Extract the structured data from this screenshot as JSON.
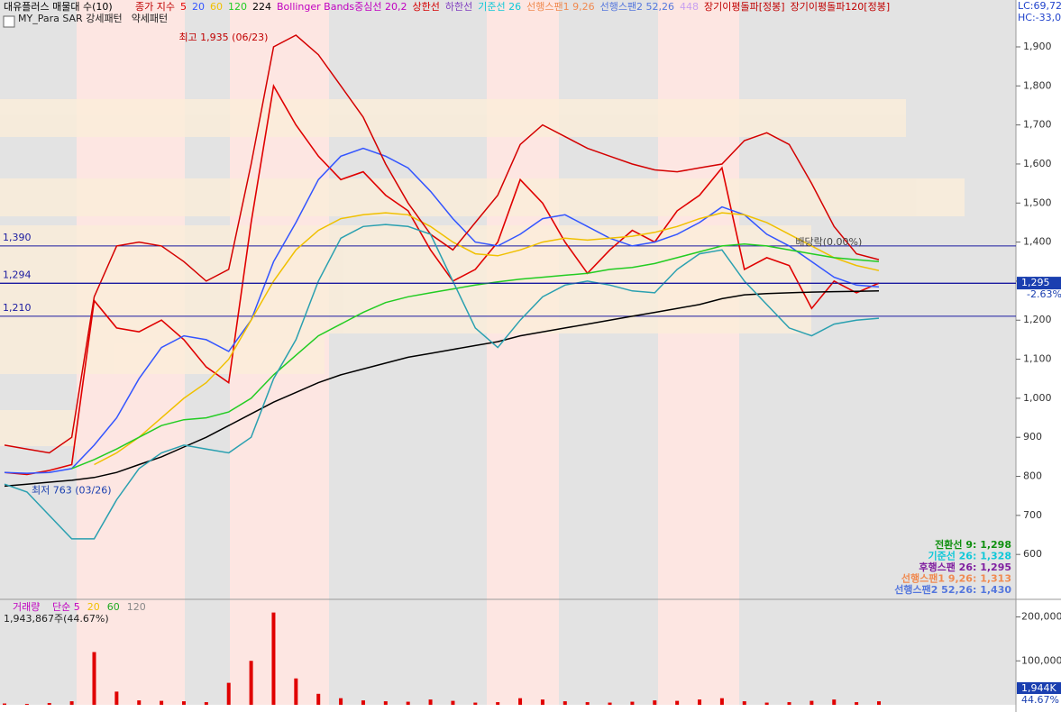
{
  "chart_data": [
    {
      "type": "line",
      "title": "대유플러스 매물대 수(10)",
      "subtitle_items": [
        "MY_Para SAR 강세패턴",
        "약세패턴"
      ],
      "header_items": [
        {
          "text": "종가 지수",
          "color": "#c00000"
        },
        {
          "text": "Bollinger Bands중심선 20,2",
          "color": "#c000c0"
        },
        {
          "text": "상한선",
          "color": "#d40000"
        },
        {
          "text": "하한선",
          "color": "#8040c0"
        },
        {
          "text": "기준선 26",
          "color": "#10c8d8"
        },
        {
          "text": "선행스팬1 9,26",
          "color": "#f08a50"
        },
        {
          "text": "선행스팬2 52,26",
          "color": "#5577dd"
        },
        {
          "text": "448",
          "color": "#c8a0f0"
        },
        {
          "text": "장기이평돌파[정봉]",
          "color": "#c00000"
        },
        {
          "text": "장기이평돌파120[정봉]",
          "color": "#c00000"
        }
      ],
      "corner_labels": [
        "LC:69,72",
        "HC:-33,0"
      ],
      "series": [
        {
          "name": "5",
          "color": "#e00000",
          "values": [
            810,
            805,
            815,
            830,
            1250,
            1180,
            1170,
            1200,
            1150,
            1080,
            1040,
            1450,
            1800,
            1700,
            1620,
            1560,
            1580,
            1520,
            1480,
            1380,
            1300,
            1330,
            1400,
            1560,
            1500,
            1400,
            1320,
            1380,
            1430,
            1400,
            1480,
            1520,
            1590,
            1330,
            1360,
            1340,
            1230,
            1300,
            1270,
            1295
          ]
        },
        {
          "name": "20",
          "color": "#3355ff",
          "values": [
            810,
            808,
            810,
            820,
            880,
            950,
            1050,
            1130,
            1160,
            1150,
            1120,
            1200,
            1350,
            1450,
            1560,
            1620,
            1640,
            1620,
            1590,
            1530,
            1460,
            1400,
            1390,
            1420,
            1460,
            1470,
            1440,
            1410,
            1390,
            1400,
            1420,
            1450,
            1490,
            1470,
            1420,
            1390,
            1350,
            1310,
            1290,
            1285
          ]
        },
        {
          "name": "60",
          "color": "#f0c000",
          "values": [
            null,
            null,
            null,
            null,
            830,
            860,
            900,
            950,
            1000,
            1040,
            1100,
            1200,
            1300,
            1380,
            1430,
            1460,
            1470,
            1475,
            1470,
            1440,
            1400,
            1370,
            1365,
            1380,
            1400,
            1410,
            1405,
            1410,
            1415,
            1425,
            1440,
            1460,
            1475,
            1470,
            1450,
            1420,
            1390,
            1360,
            1340,
            1327
          ]
        },
        {
          "name": "120",
          "color": "#22cc22",
          "values": [
            null,
            null,
            null,
            820,
            843,
            870,
            900,
            930,
            945,
            950,
            965,
            1000,
            1060,
            1110,
            1160,
            1190,
            1220,
            1245,
            1260,
            1270,
            1280,
            1290,
            1298,
            1305,
            1310,
            1315,
            1320,
            1330,
            1335,
            1345,
            1360,
            1375,
            1390,
            1395,
            1390,
            1380,
            1370,
            1360,
            1355,
            1350
          ]
        },
        {
          "name": "224",
          "color": "#000000",
          "values": [
            775,
            780,
            785,
            790,
            797,
            810,
            830,
            850,
            875,
            900,
            930,
            960,
            990,
            1015,
            1040,
            1060,
            1075,
            1090,
            1105,
            1115,
            1125,
            1135,
            1145,
            1160,
            1170,
            1180,
            1190,
            1200,
            1210,
            1220,
            1230,
            1240,
            1255,
            1265,
            1268,
            1270,
            1272,
            1273,
            1274,
            1275
          ]
        },
        {
          "name": "상한선",
          "color": "#d40000",
          "values": [
            880,
            870,
            860,
            900,
            1260,
            1390,
            1400,
            1390,
            1350,
            1300,
            1330,
            1600,
            1900,
            1930,
            1880,
            1800,
            1720,
            1600,
            1500,
            1420,
            1380,
            1450,
            1520,
            1650,
            1700,
            1670,
            1640,
            1620,
            1600,
            1585,
            1580,
            1590,
            1600,
            1660,
            1680,
            1650,
            1550,
            1440,
            1370,
            1355
          ]
        },
        {
          "name": "하한선",
          "color": "#2aa0b0",
          "values": [
            780,
            760,
            700,
            640,
            640,
            740,
            820,
            860,
            880,
            870,
            860,
            900,
            1050,
            1150,
            1300,
            1410,
            1440,
            1445,
            1440,
            1420,
            1300,
            1180,
            1130,
            1200,
            1260,
            1290,
            1300,
            1290,
            1275,
            1270,
            1330,
            1370,
            1380,
            1300,
            1240,
            1180,
            1160,
            1190,
            1200,
            1205
          ]
        }
      ],
      "ylim": [
        485,
        2020
      ],
      "yticks": [
        {
          "value": 600,
          "label": "600"
        },
        {
          "value": 700,
          "label": "700"
        },
        {
          "value": 800,
          "label": "800"
        },
        {
          "value": 900,
          "label": "900"
        },
        {
          "value": 1000,
          "label": "1,000"
        },
        {
          "value": 1100,
          "label": "1,100"
        },
        {
          "value": 1200,
          "label": "1,200"
        },
        {
          "value": 1300,
          "label": "1,300"
        },
        {
          "value": 1400,
          "label": "1,400"
        },
        {
          "value": 1500,
          "label": "1,500"
        },
        {
          "value": 1600,
          "label": "1,600"
        },
        {
          "value": 1700,
          "label": "1,700"
        },
        {
          "value": 1800,
          "label": "1,800"
        },
        {
          "value": 1900,
          "label": "1,900"
        }
      ],
      "levels": [
        {
          "value": 1390,
          "label": "1,390"
        },
        {
          "value": 1294,
          "label": "1,294"
        },
        {
          "value": 1210,
          "label": "1,210"
        }
      ],
      "current": {
        "value": 1295,
        "label": "1,295",
        "change": "-2.63%"
      },
      "annotations": [
        {
          "text": "최고 1,935 (06/23)",
          "value": 1935,
          "index": 12
        },
        {
          "text": "최저 763 (03/26)",
          "value": 763,
          "index": 0
        },
        {
          "text": "배당락(0.00%)",
          "value": 1390,
          "index": 36
        }
      ],
      "indicator_legend": [
        {
          "text": "전환선 9: 1,298",
          "color": "#109010"
        },
        {
          "text": "기준선 26: 1,328",
          "color": "#10c8d8"
        },
        {
          "text": "후행스팬 26: 1,295",
          "color": "#8020a0"
        },
        {
          "text": "선행스팬1 9,26: 1,313",
          "color": "#f08a50"
        },
        {
          "text": "선행스팬2 52,26: 1,430",
          "color": "#5577dd"
        }
      ]
    },
    {
      "type": "bar",
      "title": "거래량",
      "legend_items": [
        {
          "text": "단순 5",
          "color": "#c000c0"
        },
        {
          "text": "20",
          "color": "#f0c000"
        },
        {
          "text": "60",
          "color": "#22aa22"
        },
        {
          "text": "120",
          "color": "#888888"
        }
      ],
      "subtitle": "1,943,867주(44.67%)",
      "values": [
        3000,
        2000,
        4000,
        8000,
        120000,
        30000,
        10000,
        9000,
        8000,
        6000,
        50000,
        100000,
        210000,
        60000,
        25000,
        15000,
        10000,
        8000,
        7000,
        12000,
        9000,
        5000,
        6000,
        15000,
        12000,
        8000,
        6000,
        5000,
        7000,
        10000,
        9000,
        12000,
        15000,
        8000,
        5000,
        6000,
        9000,
        12000,
        6000,
        8000
      ],
      "color": "#e00000",
      "ylim": [
        0,
        240000
      ],
      "yticks": [
        {
          "value": 100000,
          "label": "100,000"
        },
        {
          "value": 200000,
          "label": "200,000"
        }
      ],
      "current_labels": [
        "1,944K",
        "44.67%"
      ]
    }
  ]
}
